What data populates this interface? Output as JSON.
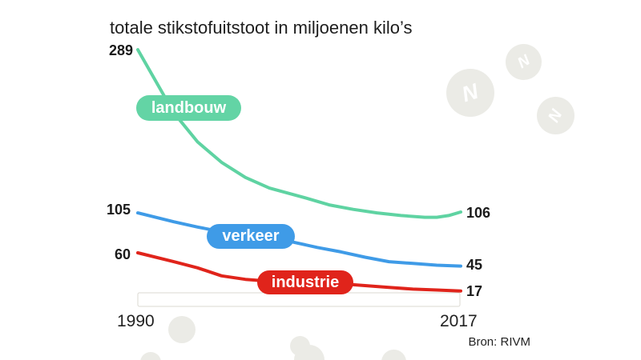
{
  "title": "totale stikstofuitstoot in miljoenen kilo’s",
  "source": "Bron: RIVM",
  "x_axis": {
    "start": "1990",
    "end": "2017"
  },
  "decor": {
    "molecule_letter": "N"
  },
  "chart_data": {
    "type": "line",
    "title": "totale stikstofuitstoot in miljoenen kilo’s",
    "xlabel": "",
    "ylabel": "",
    "x_range": [
      1990,
      2017
    ],
    "x_tick_labels": [
      "1990",
      "2017"
    ],
    "ylim": [
      0,
      300
    ],
    "grid": false,
    "legend_position": "inline-pills-on-lines",
    "source": "Bron: RIVM",
    "series": [
      {
        "name": "landbouw",
        "color": "#5fd3a2",
        "label_start": 289,
        "label_end": 106,
        "points": [
          [
            1990,
            289
          ],
          [
            1993,
            218
          ],
          [
            1995,
            185
          ],
          [
            1997,
            162
          ],
          [
            1999,
            145
          ],
          [
            2001,
            133
          ],
          [
            2004,
            122
          ],
          [
            2006,
            114
          ],
          [
            2008,
            109
          ],
          [
            2010,
            105
          ],
          [
            2012,
            102
          ],
          [
            2014,
            100
          ],
          [
            2015,
            100
          ],
          [
            2016,
            102
          ],
          [
            2017,
            106
          ]
        ]
      },
      {
        "name": "verkeer",
        "color": "#3f9be7",
        "label_start": 105,
        "label_end": 45,
        "points": [
          [
            1990,
            105
          ],
          [
            1993,
            95
          ],
          [
            1995,
            89
          ],
          [
            1998,
            81
          ],
          [
            2000,
            77
          ],
          [
            2003,
            72
          ],
          [
            2005,
            66
          ],
          [
            2007,
            61
          ],
          [
            2009,
            55
          ],
          [
            2011,
            50
          ],
          [
            2013,
            48
          ],
          [
            2015,
            46
          ],
          [
            2017,
            45
          ]
        ]
      },
      {
        "name": "industrie",
        "color": "#e0241b",
        "label_start": 60,
        "label_end": 17,
        "points": [
          [
            1990,
            60
          ],
          [
            1993,
            50
          ],
          [
            1995,
            43
          ],
          [
            1997,
            34
          ],
          [
            1999,
            30
          ],
          [
            2001,
            28
          ],
          [
            2004,
            26
          ],
          [
            2008,
            24
          ],
          [
            2011,
            21
          ],
          [
            2013,
            19
          ],
          [
            2015,
            18
          ],
          [
            2017,
            17
          ]
        ]
      }
    ]
  }
}
